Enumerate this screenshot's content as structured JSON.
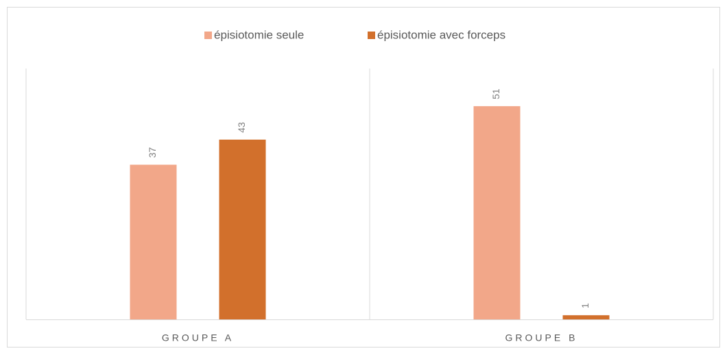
{
  "chart_data": {
    "type": "bar",
    "categories": [
      "GROUPE A",
      "GROUPE B"
    ],
    "series": [
      {
        "name": "épisiotomie seule",
        "color": "#f2a789",
        "values": [
          37,
          51
        ]
      },
      {
        "name": "épisiotomie avec forceps",
        "color": "#d2702c",
        "values": [
          43,
          1
        ]
      }
    ],
    "ylim": [
      0,
      60
    ],
    "legend": "top"
  }
}
